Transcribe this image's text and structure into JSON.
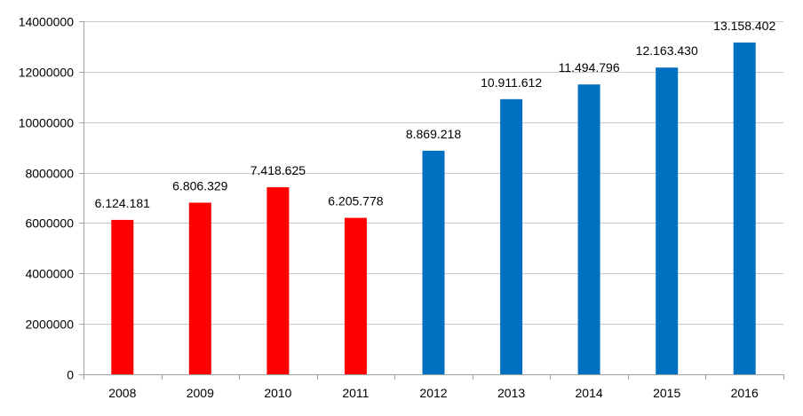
{
  "chart_data": {
    "type": "bar",
    "title": "",
    "xlabel": "",
    "ylabel": "",
    "categories": [
      "2008",
      "2009",
      "2010",
      "2011",
      "2012",
      "2013",
      "2014",
      "2015",
      "2016"
    ],
    "values": [
      6124181,
      6806329,
      7418625,
      6205778,
      8869218,
      10911612,
      11494796,
      12163430,
      13158402
    ],
    "data_labels": [
      "6.124.181",
      "6.806.329",
      "7.418.625",
      "6.205.778",
      "8.869.218",
      "10.911.612",
      "11.494.796",
      "12.163.430",
      "13.158.402"
    ],
    "bar_colors": [
      "#ff0000",
      "#ff0000",
      "#ff0000",
      "#ff0000",
      "#0070c0",
      "#0070c0",
      "#0070c0",
      "#0070c0",
      "#0070c0"
    ],
    "ylim": [
      0,
      14000000
    ],
    "yticks": [
      0,
      2000000,
      4000000,
      6000000,
      8000000,
      10000000,
      12000000,
      14000000
    ],
    "ytick_labels": [
      "0",
      "2000000",
      "4000000",
      "6000000",
      "8000000",
      "10000000",
      "12000000",
      "14000000"
    ],
    "grid": true,
    "legend": "none"
  }
}
